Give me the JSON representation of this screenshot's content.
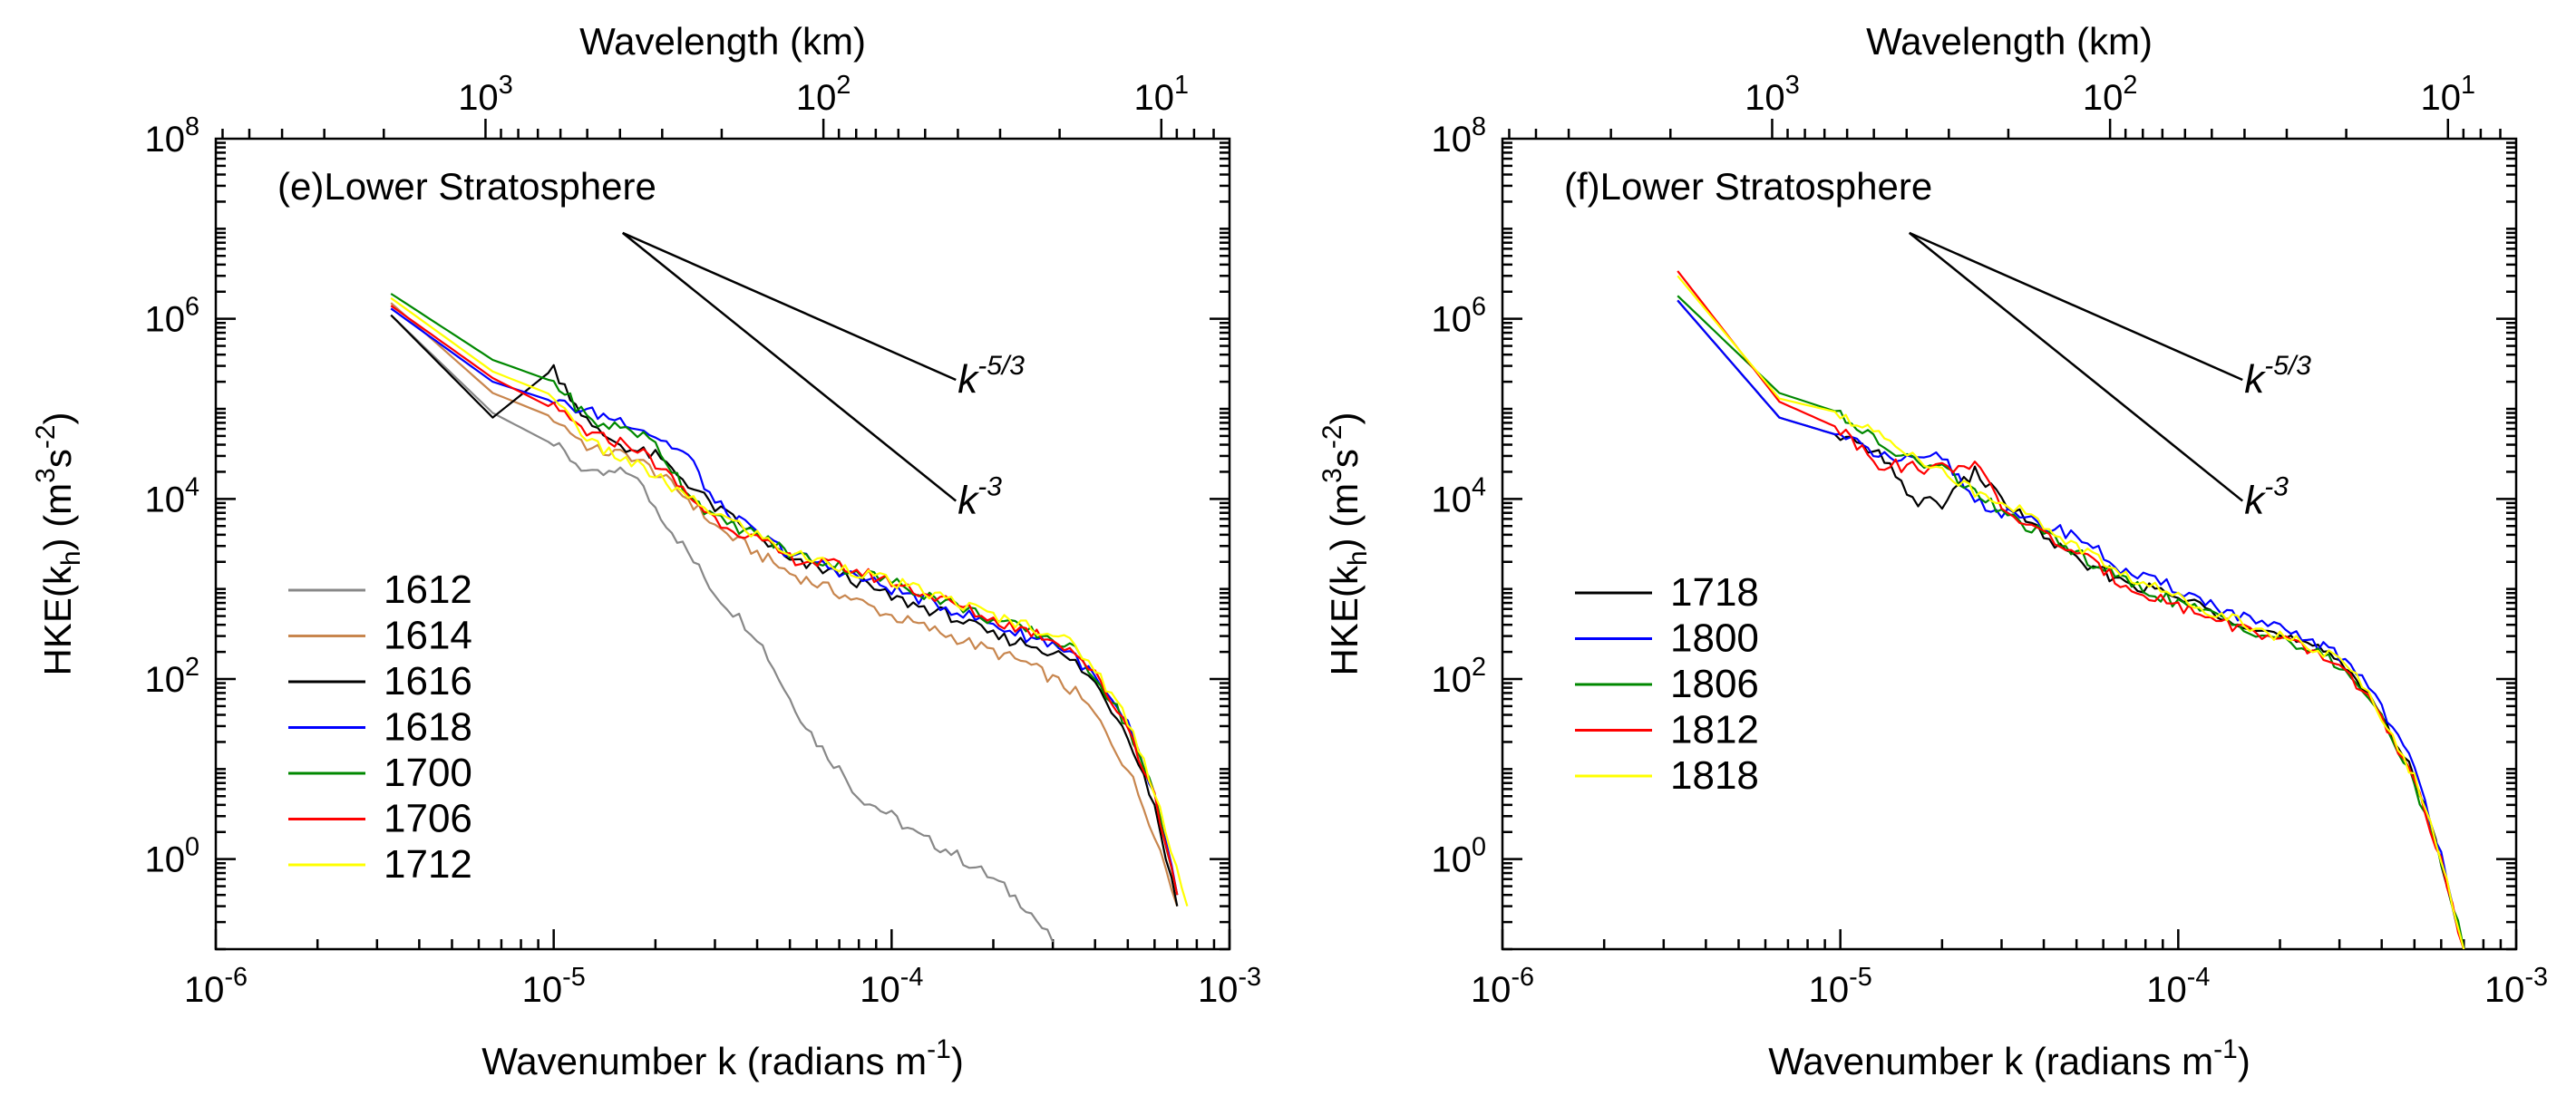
{
  "chart_data": [
    {
      "type": "line",
      "panel_label": "(e)Lower Stratosphere",
      "xlabel_main": "Wavenumber k (radians m",
      "xlabel_sup": "-1",
      "xlabel_close": ")",
      "ylabel_parts": [
        "HKE(k",
        "h",
        ") (m",
        "3",
        "s",
        "-2",
        ")"
      ],
      "top_axis_label": "Wavelength (km)",
      "xscale": "log",
      "yscale": "log",
      "xlim": [
        1e-06,
        0.001
      ],
      "ylim": [
        0.1,
        100000000.0
      ],
      "x_ticks": [
        {
          "base": "10",
          "exp": "-6",
          "v": 1e-06
        },
        {
          "base": "10",
          "exp": "-5",
          "v": 1e-05
        },
        {
          "base": "10",
          "exp": "-4",
          "v": 0.0001
        },
        {
          "base": "10",
          "exp": "-3",
          "v": 0.001
        }
      ],
      "y_ticks": [
        {
          "base": "10",
          "exp": "0",
          "v": 1
        },
        {
          "base": "10",
          "exp": "2",
          "v": 100
        },
        {
          "base": "10",
          "exp": "4",
          "v": 10000
        },
        {
          "base": "10",
          "exp": "6",
          "v": 1000000
        },
        {
          "base": "10",
          "exp": "8",
          "v": 100000000
        }
      ],
      "top_ticks": [
        {
          "base": "10",
          "exp": "3",
          "km": 1000
        },
        {
          "base": "10",
          "exp": "2",
          "km": 100
        },
        {
          "base": "10",
          "exp": "1",
          "km": 10
        }
      ],
      "reference_lines": [
        {
          "label_base": "k",
          "label_exp": "-5/3",
          "x": [
            1.6e-05,
            0.000155
          ],
          "y": [
            9000000.0,
            210000.0
          ]
        },
        {
          "label_base": "k",
          "label_exp": "-3",
          "x": [
            1.6e-05,
            0.000155
          ],
          "y": [
            9000000.0,
            9500.0
          ]
        }
      ],
      "legend_position": "lower-left",
      "series": [
        {
          "name": "1612",
          "color": "#888888",
          "profile": "decay",
          "x": [
            3.3e-06,
            6.6e-06,
            1e-05,
            1.3e-05,
            1.7e-05,
            2e-05,
            2.5e-05,
            3e-05,
            4e-05,
            5e-05,
            6e-05,
            7e-05,
            8e-05,
            0.0001,
            0.00012,
            0.00015,
            0.0002,
            0.00025,
            0.0003
          ],
          "y": [
            1100000.0,
            90000.0,
            40000.0,
            18000.0,
            20000.0,
            8000.0,
            2500.0,
            900,
            300,
            60,
            20,
            10,
            5,
            3,
            1.8,
            1.2,
            0.6,
            0.3,
            0.12
          ]
        },
        {
          "name": "1614",
          "color": "#C8864E",
          "profile": "plateau",
          "x": [
            3.3e-06,
            6.6e-06,
            1e-05,
            1.3e-05,
            1.7e-05,
            2e-05,
            2.5e-05,
            3e-05,
            4e-05,
            5e-05,
            7e-05,
            0.0001,
            0.00015,
            0.0002,
            0.00025,
            0.0003,
            0.00035,
            0.0004,
            0.0005,
            0.0006,
            0.0007
          ],
          "y": [
            1500000.0,
            150000.0,
            80000.0,
            35000.0,
            30000.0,
            20000.0,
            10000.0,
            5000.0,
            2500.0,
            1500.0,
            900,
            500,
            300,
            200,
            150,
            100,
            70,
            40,
            10,
            2,
            0.3
          ]
        },
        {
          "name": "1616",
          "color": "#000000",
          "profile": "plateau",
          "x": [
            3.3e-06,
            6.6e-06,
            1e-05,
            1.3e-05,
            1.7e-05,
            2e-05,
            2.5e-05,
            3e-05,
            4e-05,
            5e-05,
            7e-05,
            0.0001,
            0.00015,
            0.0002,
            0.00025,
            0.0003,
            0.00035,
            0.0004,
            0.0005,
            0.0006,
            0.0007
          ],
          "y": [
            1100000.0,
            80000.0,
            280000.0,
            60000.0,
            35000.0,
            30000.0,
            15000.0,
            8000.0,
            4000.0,
            2000.0,
            1500.0,
            800,
            500,
            300,
            250,
            200,
            150,
            90,
            25,
            4,
            0.3
          ]
        },
        {
          "name": "1618",
          "color": "#0000FF",
          "profile": "plateau",
          "x": [
            3.3e-06,
            6.6e-06,
            1e-05,
            1.3e-05,
            1.7e-05,
            2e-05,
            2.5e-05,
            3e-05,
            4e-05,
            5e-05,
            7e-05,
            0.0001,
            0.00015,
            0.0002,
            0.00025,
            0.0003,
            0.00035,
            0.0004,
            0.0005,
            0.0006,
            0.0007
          ],
          "y": [
            1300000.0,
            200000.0,
            120000.0,
            90000.0,
            70000.0,
            50000.0,
            30000.0,
            9000.0,
            4000.0,
            2500.0,
            1600.0,
            1000.0,
            600,
            400,
            300,
            250,
            180,
            100,
            30,
            5,
            0.4
          ]
        },
        {
          "name": "1700",
          "color": "#008800",
          "profile": "plateau",
          "x": [
            3.3e-06,
            6.6e-06,
            1e-05,
            1.3e-05,
            1.7e-05,
            2e-05,
            2.5e-05,
            3e-05,
            4e-05,
            5e-05,
            7e-05,
            0.0001,
            0.00015,
            0.0002,
            0.00025,
            0.0003,
            0.00035,
            0.0004,
            0.0005,
            0.0006,
            0.0007
          ],
          "y": [
            1900000.0,
            350000.0,
            200000.0,
            70000.0,
            60000.0,
            40000.0,
            12000.0,
            6000.0,
            4000.0,
            2500.0,
            1800.0,
            1200.0,
            700,
            450,
            350,
            280,
            200,
            110,
            30,
            5,
            0.4
          ]
        },
        {
          "name": "1706",
          "color": "#FF0000",
          "profile": "plateau",
          "x": [
            3.3e-06,
            6.6e-06,
            1e-05,
            1.3e-05,
            1.7e-05,
            2e-05,
            2.5e-05,
            3e-05,
            4e-05,
            5e-05,
            7e-05,
            0.0001,
            0.00015,
            0.0002,
            0.00025,
            0.0003,
            0.00035,
            0.0004,
            0.0005,
            0.0006,
            0.0007
          ],
          "y": [
            1400000.0,
            220000.0,
            100000.0,
            50000.0,
            40000.0,
            25000.0,
            11000.0,
            6000.0,
            3500.0,
            2200.0,
            1800.0,
            1200.0,
            700,
            450,
            350,
            280,
            200,
            110,
            30,
            5,
            0.4
          ]
        },
        {
          "name": "1712",
          "color": "#FFFF00",
          "profile": "plateau",
          "x": [
            3.3e-06,
            6.6e-06,
            1e-05,
            1.3e-05,
            1.7e-05,
            2e-05,
            2.5e-05,
            3e-05,
            4e-05,
            5e-05,
            7e-05,
            0.0001,
            0.00015,
            0.0002,
            0.00025,
            0.0003,
            0.00035,
            0.0004,
            0.0005,
            0.0006,
            0.00075
          ],
          "y": [
            1700000.0,
            260000.0,
            140000.0,
            40000.0,
            25000.0,
            18000.0,
            10000.0,
            7000.0,
            4000.0,
            2500.0,
            1800.0,
            1200.0,
            750,
            500,
            400,
            320,
            230,
            130,
            35,
            6,
            0.3
          ]
        }
      ]
    },
    {
      "type": "line",
      "panel_label": "(f)Lower Stratosphere",
      "xlabel_main": "Wavenumber k (radians m",
      "xlabel_sup": "-1",
      "xlabel_close": ")",
      "ylabel_parts": [
        "HKE(k",
        "h",
        ") (m",
        "3",
        "s",
        "-2",
        ")"
      ],
      "top_axis_label": "Wavelength (km)",
      "xscale": "log",
      "yscale": "log",
      "xlim": [
        1e-06,
        0.001
      ],
      "ylim": [
        0.1,
        100000000.0
      ],
      "x_ticks": [
        {
          "base": "10",
          "exp": "-6",
          "v": 1e-06
        },
        {
          "base": "10",
          "exp": "-5",
          "v": 1e-05
        },
        {
          "base": "10",
          "exp": "-4",
          "v": 0.0001
        },
        {
          "base": "10",
          "exp": "-3",
          "v": 0.001
        }
      ],
      "y_ticks": [
        {
          "base": "10",
          "exp": "0",
          "v": 1
        },
        {
          "base": "10",
          "exp": "2",
          "v": 100
        },
        {
          "base": "10",
          "exp": "4",
          "v": 10000
        },
        {
          "base": "10",
          "exp": "6",
          "v": 1000000
        },
        {
          "base": "10",
          "exp": "8",
          "v": 100000000
        }
      ],
      "top_ticks": [
        {
          "base": "10",
          "exp": "3",
          "km": 1000
        },
        {
          "base": "10",
          "exp": "2",
          "km": 100
        },
        {
          "base": "10",
          "exp": "1",
          "km": 10
        }
      ],
      "reference_lines": [
        {
          "label_base": "k",
          "label_exp": "-5/3",
          "x": [
            1.6e-05,
            0.000155
          ],
          "y": [
            9000000.0,
            210000.0
          ]
        },
        {
          "label_base": "k",
          "label_exp": "-3",
          "x": [
            1.6e-05,
            0.000155
          ],
          "y": [
            9000000.0,
            9500.0
          ]
        }
      ],
      "legend_position": "lower-left",
      "series": [
        {
          "name": "1718",
          "color": "#000000",
          "profile": "plateau",
          "x": [
            3.3e-06,
            6.6e-06,
            1e-05,
            1.3e-05,
            1.7e-05,
            2e-05,
            2.5e-05,
            3e-05,
            4e-05,
            5e-05,
            7e-05,
            0.0001,
            0.00015,
            0.0002,
            0.00025,
            0.0003,
            0.00035,
            0.0004,
            0.0005,
            0.0006,
            0.0007
          ],
          "y": [
            1600000.0,
            80000.0,
            50000.0,
            30000.0,
            9000.0,
            9000.0,
            20000.0,
            10000.0,
            4000.0,
            2000.0,
            1200.0,
            800,
            450,
            300,
            220,
            160,
            90,
            40,
            8,
            1,
            0.1
          ]
        },
        {
          "name": "1800",
          "color": "#0000FF",
          "profile": "plateau",
          "x": [
            3.3e-06,
            6.6e-06,
            1e-05,
            1.3e-05,
            1.7e-05,
            2e-05,
            2.5e-05,
            3e-05,
            4e-05,
            5e-05,
            7e-05,
            0.0001,
            0.00015,
            0.0002,
            0.00025,
            0.0003,
            0.00035,
            0.0004,
            0.0005,
            0.0006,
            0.0007
          ],
          "y": [
            1600000.0,
            80000.0,
            50000.0,
            30000.0,
            25000.0,
            30000.0,
            10000.0,
            7000.0,
            5000.0,
            4000.0,
            1500.0,
            1000.0,
            500,
            350,
            260,
            180,
            110,
            50,
            10,
            1.2,
            0.1
          ]
        },
        {
          "name": "1806",
          "color": "#008800",
          "profile": "plateau",
          "x": [
            3.3e-06,
            6.6e-06,
            1e-05,
            1.3e-05,
            1.7e-05,
            2e-05,
            2.5e-05,
            3e-05,
            4e-05,
            5e-05,
            7e-05,
            0.0001,
            0.00015,
            0.0002,
            0.00025,
            0.0003,
            0.00035,
            0.0004,
            0.0005,
            0.0006,
            0.0007
          ],
          "y": [
            1800000.0,
            150000.0,
            90000.0,
            40000.0,
            25000.0,
            22000.0,
            12000.0,
            7000.0,
            4000.0,
            2500.0,
            1200.0,
            700,
            400,
            280,
            200,
            140,
            80,
            35,
            7,
            1,
            0.1
          ]
        },
        {
          "name": "1812",
          "color": "#FF0000",
          "profile": "plateau",
          "x": [
            3.3e-06,
            6.6e-06,
            1e-05,
            1.3e-05,
            1.7e-05,
            2e-05,
            2.5e-05,
            3e-05,
            4e-05,
            5e-05,
            7e-05,
            0.0001,
            0.00015,
            0.0002,
            0.00025,
            0.0003,
            0.00035,
            0.0004,
            0.0005,
            0.0006,
            0.0007
          ],
          "y": [
            3400000.0,
            120000.0,
            60000.0,
            25000.0,
            22000.0,
            22000.0,
            25000.0,
            8000.0,
            4000.0,
            2500.0,
            1100.0,
            650,
            380,
            270,
            200,
            140,
            80,
            35,
            7,
            1,
            0.1
          ]
        },
        {
          "name": "1818",
          "color": "#FFFF00",
          "profile": "plateau",
          "x": [
            3.3e-06,
            6.6e-06,
            1e-05,
            1.3e-05,
            1.7e-05,
            2e-05,
            2.5e-05,
            3e-05,
            4e-05,
            5e-05,
            7e-05,
            0.0001,
            0.00015,
            0.0002,
            0.00025,
            0.0003,
            0.00035,
            0.0004,
            0.0005,
            0.0006,
            0.0007
          ],
          "y": [
            3000000.0,
            130000.0,
            90000.0,
            50000.0,
            30000.0,
            20000.0,
            12000.0,
            10000.0,
            5000.0,
            3000.0,
            1400.0,
            800,
            450,
            300,
            220,
            160,
            90,
            40,
            8,
            1,
            0.1
          ]
        }
      ]
    }
  ]
}
